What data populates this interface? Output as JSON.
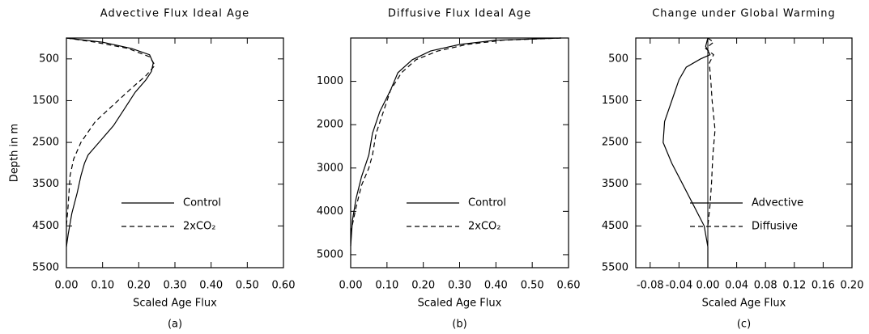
{
  "chart_data": [
    {
      "type": "line",
      "title": "Advective Flux Ideal Age",
      "xlabel": "Scaled Age Flux",
      "ylabel": "Depth in m",
      "panel_label": "(a)",
      "xlim": [
        0,
        0.6
      ],
      "ylim": [
        0,
        5500
      ],
      "y_inverted": true,
      "legend_position": "lower right",
      "xticks": [
        {
          "value": 0,
          "label": "0.00"
        },
        {
          "value": 0.1,
          "label": "0.10"
        },
        {
          "value": 0.2,
          "label": "0.20"
        },
        {
          "value": 0.3,
          "label": "0.30"
        },
        {
          "value": 0.4,
          "label": "0.40"
        },
        {
          "value": 0.5,
          "label": "0.50"
        },
        {
          "value": 0.6,
          "label": "0.60"
        }
      ],
      "yticks": [
        500,
        1500,
        2500,
        3500,
        4500,
        5500
      ],
      "series": [
        {
          "name": "Control",
          "color": "#000000",
          "line_style": "solid",
          "depth": [
            0,
            100,
            250,
            400,
            600,
            800,
            1000,
            1300,
            1700,
            2100,
            2500,
            2800,
            3000,
            3300,
            3700,
            4200,
            4700,
            5000
          ],
          "values": [
            0,
            0.1,
            0.18,
            0.23,
            0.24,
            0.235,
            0.22,
            0.19,
            0.16,
            0.13,
            0.09,
            0.06,
            0.05,
            0.04,
            0.03,
            0.015,
            0.005,
            0
          ]
        },
        {
          "name": "2xCO₂",
          "color": "#000000",
          "line_style": "dashed",
          "depth": [
            0,
            100,
            250,
            450,
            650,
            900,
            1200,
            1600,
            2000,
            2500,
            2900,
            3300,
            4000,
            4500
          ],
          "values": [
            0,
            0.08,
            0.17,
            0.23,
            0.245,
            0.22,
            0.18,
            0.13,
            0.08,
            0.04,
            0.02,
            0.01,
            0.005,
            0
          ]
        }
      ]
    },
    {
      "type": "line",
      "title": "Diffusive Flux Ideal Age",
      "xlabel": "Scaled Age Flux",
      "panel_label": "(b)",
      "xlim": [
        0,
        0.6
      ],
      "ylim": [
        0,
        5300
      ],
      "y_inverted": true,
      "legend_position": "lower right",
      "xticks": [
        {
          "value": 0,
          "label": "0.00"
        },
        {
          "value": 0.1,
          "label": "0.10"
        },
        {
          "value": 0.2,
          "label": "0.20"
        },
        {
          "value": 0.3,
          "label": "0.30"
        },
        {
          "value": 0.4,
          "label": "0.40"
        },
        {
          "value": 0.5,
          "label": "0.50"
        },
        {
          "value": 0.6,
          "label": "0.60"
        }
      ],
      "yticks": [
        1000,
        2000,
        3000,
        4000,
        5000
      ],
      "series": [
        {
          "name": "Control",
          "color": "#000000",
          "line_style": "solid",
          "depth": [
            0,
            50,
            150,
            300,
            500,
            800,
            1200,
            1700,
            2200,
            2700,
            3200,
            3700,
            4200,
            4800
          ],
          "values": [
            0.58,
            0.4,
            0.3,
            0.22,
            0.17,
            0.13,
            0.11,
            0.08,
            0.06,
            0.05,
            0.03,
            0.015,
            0.005,
            0
          ]
        },
        {
          "name": "2xCO₂",
          "color": "#000000",
          "line_style": "dashed",
          "depth": [
            0,
            50,
            150,
            300,
            500,
            800,
            1200,
            1700,
            2200,
            2700,
            3000,
            3400,
            3900,
            4500
          ],
          "values": [
            0.58,
            0.42,
            0.32,
            0.24,
            0.18,
            0.14,
            0.11,
            0.09,
            0.07,
            0.06,
            0.05,
            0.03,
            0.015,
            0
          ]
        }
      ]
    },
    {
      "type": "line",
      "title": "Change under Global Warming",
      "xlabel": "Scaled Age Flux",
      "panel_label": "(c)",
      "xlim": [
        -0.1,
        0.2
      ],
      "ylim": [
        0,
        5500
      ],
      "y_inverted": true,
      "legend_position": "lower right",
      "zero_line": true,
      "xticks": [
        {
          "value": -0.08,
          "label": "-0.08"
        },
        {
          "value": -0.04,
          "label": "-0.04"
        },
        {
          "value": 0,
          "label": "0.00"
        },
        {
          "value": 0.04,
          "label": "0.04"
        },
        {
          "value": 0.08,
          "label": "0.08"
        },
        {
          "value": 0.12,
          "label": "0.12"
        },
        {
          "value": 0.16,
          "label": "0.16"
        },
        {
          "value": 0.2,
          "label": "0.20"
        }
      ],
      "yticks": [
        500,
        1500,
        2500,
        3500,
        4500,
        5500
      ],
      "series": [
        {
          "name": "Advective",
          "color": "#000000",
          "line_style": "solid",
          "depth": [
            0,
            200,
            400,
            500,
            700,
            1000,
            1500,
            2000,
            2500,
            3000,
            3500,
            4000,
            4500,
            5000,
            5500
          ],
          "values": [
            0,
            -0.003,
            0.003,
            -0.01,
            -0.03,
            -0.04,
            -0.05,
            -0.06,
            -0.062,
            -0.05,
            -0.035,
            -0.02,
            -0.005,
            0,
            0
          ]
        },
        {
          "name": "Diffusive",
          "color": "#000000",
          "line_style": "dashed",
          "depth": [
            0,
            100,
            250,
            400,
            600,
            1000,
            1500,
            2200,
            2800,
            3500,
            4000,
            4500
          ],
          "values": [
            0,
            0.008,
            -0.003,
            0.008,
            0.002,
            0.004,
            0.006,
            0.01,
            0.007,
            0.005,
            0.003,
            0
          ]
        }
      ]
    }
  ]
}
